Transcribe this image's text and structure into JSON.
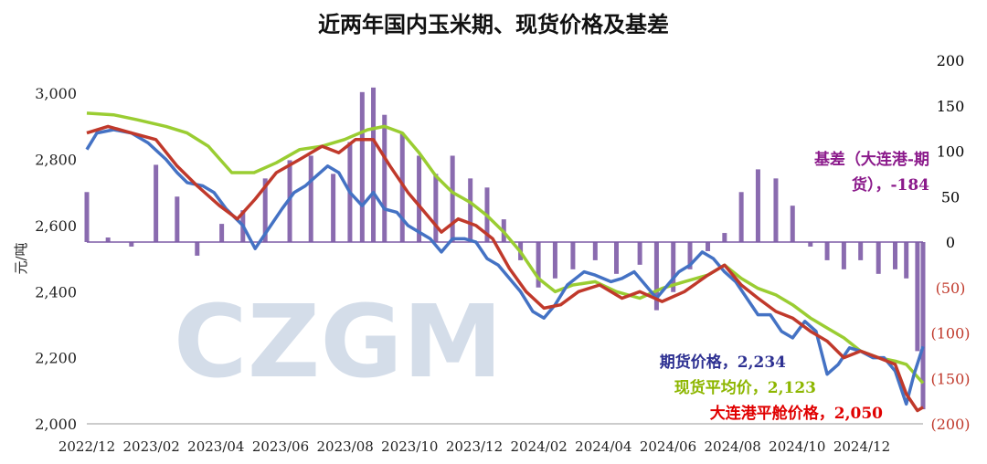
{
  "chart_data": {
    "type": "line",
    "title": "近两年国内玉米期、现货价格及基差",
    "ylabel": "元/吨",
    "watermark": "CZGM",
    "x_tick_labels": [
      "2022/12",
      "2023/02",
      "2023/04",
      "2023/06",
      "2023/08",
      "2023/10",
      "2023/12",
      "2024/02",
      "2024/04",
      "2024/06",
      "2024/08",
      "2024/10",
      "2024/12"
    ],
    "x_range": [
      "2022-12-01",
      "2024-12-20"
    ],
    "y_left": {
      "min": 2000,
      "max": 3100,
      "ticks": [
        2000,
        2200,
        2400,
        2600,
        2800,
        3000
      ],
      "tick_labels": [
        "2,000",
        "2,200",
        "2,400",
        "2,600",
        "2,800",
        "3,000"
      ]
    },
    "y_right": {
      "min": -200,
      "max": 200,
      "ticks": [
        -200,
        -150,
        -100,
        -50,
        0,
        50,
        100,
        150,
        200
      ],
      "tick_labels": [
        "(200)",
        "(150)",
        "(100)",
        "(50)",
        "0",
        "50",
        "100",
        "150",
        "200"
      ],
      "negative_color": "#C0392B",
      "positive_color": "#000000"
    },
    "colors": {
      "basis": "#7D5BA6",
      "futures": "#4472C4",
      "spot_avg": "#9ACD32",
      "port": "#C0392B",
      "label_futures": "#2E3192",
      "label_spot": "#8DB600",
      "label_port": "#E00000",
      "label_basis": "#8B1A8B"
    },
    "series": [
      {
        "key": "basis",
        "name": "基差（大连港-期货）",
        "kind": "bar",
        "axis": "right",
        "label_line1": "基差（大连港-期",
        "label_line2": "货），-184",
        "x": [
          "2022-12-01",
          "2022-12-20",
          "2023-01-10",
          "2023-02-01",
          "2023-02-20",
          "2023-03-10",
          "2023-04-01",
          "2023-04-20",
          "2023-05-10",
          "2023-06-01",
          "2023-06-20",
          "2023-07-10",
          "2023-07-25",
          "2023-08-05",
          "2023-08-15",
          "2023-08-25",
          "2023-09-10",
          "2023-09-25",
          "2023-10-10",
          "2023-10-25",
          "2023-11-10",
          "2023-11-25",
          "2023-12-10",
          "2023-12-25",
          "2024-01-10",
          "2024-01-25",
          "2024-02-10",
          "2024-03-01",
          "2024-03-20",
          "2024-04-10",
          "2024-04-25",
          "2024-05-10",
          "2024-05-25",
          "2024-06-10",
          "2024-06-25",
          "2024-07-10",
          "2024-07-25",
          "2024-08-10",
          "2024-08-25",
          "2024-09-10",
          "2024-09-25",
          "2024-10-10",
          "2024-10-25",
          "2024-11-10",
          "2024-11-25",
          "2024-12-05",
          "2024-12-15",
          "2024-12-20"
        ],
        "values": [
          55,
          5,
          -5,
          85,
          50,
          -15,
          20,
          35,
          70,
          90,
          95,
          75,
          110,
          165,
          170,
          140,
          120,
          95,
          75,
          95,
          70,
          60,
          25,
          -20,
          -50,
          -40,
          -30,
          -20,
          -35,
          -25,
          -75,
          -55,
          -30,
          -10,
          10,
          55,
          80,
          70,
          40,
          -5,
          -20,
          -30,
          -20,
          -35,
          -30,
          -40,
          -120,
          -184
        ]
      },
      {
        "key": "futures",
        "name": "期货价格",
        "kind": "line",
        "axis": "left",
        "value_label": "期货价格，2,234",
        "x": [
          "2022-12-01",
          "2022-12-10",
          "2022-12-25",
          "2023-01-10",
          "2023-01-25",
          "2023-02-10",
          "2023-02-20",
          "2023-03-01",
          "2023-03-15",
          "2023-03-25",
          "2023-04-05",
          "2023-04-20",
          "2023-05-01",
          "2023-05-15",
          "2023-05-25",
          "2023-06-05",
          "2023-06-15",
          "2023-06-25",
          "2023-07-05",
          "2023-07-15",
          "2023-07-25",
          "2023-08-05",
          "2023-08-15",
          "2023-08-25",
          "2023-09-05",
          "2023-09-15",
          "2023-09-25",
          "2023-10-05",
          "2023-10-15",
          "2023-10-25",
          "2023-11-05",
          "2023-11-15",
          "2023-11-25",
          "2023-12-05",
          "2023-12-15",
          "2023-12-25",
          "2024-01-05",
          "2024-01-15",
          "2024-01-25",
          "2024-02-05",
          "2024-02-20",
          "2024-03-01",
          "2024-03-15",
          "2024-03-25",
          "2024-04-05",
          "2024-04-15",
          "2024-04-25",
          "2024-05-05",
          "2024-05-15",
          "2024-05-25",
          "2024-06-05",
          "2024-06-15",
          "2024-06-25",
          "2024-07-05",
          "2024-07-15",
          "2024-07-25",
          "2024-08-05",
          "2024-08-15",
          "2024-08-25",
          "2024-09-05",
          "2024-09-15",
          "2024-09-25",
          "2024-10-05",
          "2024-10-15",
          "2024-10-25",
          "2024-11-05",
          "2024-11-15",
          "2024-11-25",
          "2024-12-05",
          "2024-12-12",
          "2024-12-20"
        ],
        "values": [
          2830,
          2880,
          2890,
          2880,
          2850,
          2800,
          2760,
          2730,
          2720,
          2700,
          2650,
          2600,
          2530,
          2600,
          2650,
          2700,
          2720,
          2750,
          2780,
          2760,
          2700,
          2660,
          2700,
          2650,
          2640,
          2600,
          2580,
          2560,
          2520,
          2560,
          2560,
          2550,
          2500,
          2480,
          2440,
          2400,
          2340,
          2320,
          2360,
          2420,
          2460,
          2450,
          2430,
          2440,
          2460,
          2420,
          2380,
          2420,
          2460,
          2480,
          2520,
          2500,
          2460,
          2430,
          2380,
          2330,
          2330,
          2280,
          2260,
          2310,
          2280,
          2150,
          2180,
          2230,
          2220,
          2200,
          2200,
          2160,
          2060,
          2150,
          2234
        ]
      },
      {
        "key": "spot_avg",
        "name": "现货平均价",
        "kind": "line",
        "axis": "left",
        "value_label": "现货平均价，2,123",
        "x": [
          "2022-12-01",
          "2022-12-25",
          "2023-01-15",
          "2023-02-10",
          "2023-03-01",
          "2023-03-20",
          "2023-04-10",
          "2023-04-30",
          "2023-05-20",
          "2023-06-10",
          "2023-06-30",
          "2023-07-20",
          "2023-08-10",
          "2023-08-25",
          "2023-09-10",
          "2023-09-25",
          "2023-10-10",
          "2023-10-25",
          "2023-11-10",
          "2023-11-25",
          "2023-12-10",
          "2023-12-25",
          "2024-01-10",
          "2024-01-25",
          "2024-02-10",
          "2024-03-01",
          "2024-03-20",
          "2024-04-10",
          "2024-04-30",
          "2024-05-20",
          "2024-06-10",
          "2024-06-25",
          "2024-07-10",
          "2024-07-25",
          "2024-08-10",
          "2024-08-25",
          "2024-09-10",
          "2024-09-25",
          "2024-10-10",
          "2024-10-25",
          "2024-11-10",
          "2024-11-25",
          "2024-12-05",
          "2024-12-20"
        ],
        "values": [
          2940,
          2935,
          2920,
          2900,
          2880,
          2840,
          2760,
          2760,
          2790,
          2830,
          2840,
          2860,
          2890,
          2900,
          2880,
          2820,
          2750,
          2700,
          2670,
          2630,
          2580,
          2520,
          2440,
          2400,
          2420,
          2430,
          2400,
          2380,
          2410,
          2430,
          2450,
          2480,
          2440,
          2410,
          2390,
          2360,
          2320,
          2290,
          2260,
          2220,
          2200,
          2190,
          2180,
          2123
        ]
      },
      {
        "key": "port",
        "name": "大连港平舱价格",
        "kind": "line",
        "axis": "left",
        "value_label": "大连港平舱价格，2,050",
        "x": [
          "2022-12-01",
          "2022-12-20",
          "2023-01-10",
          "2023-02-01",
          "2023-02-20",
          "2023-03-10",
          "2023-03-30",
          "2023-04-15",
          "2023-05-01",
          "2023-05-20",
          "2023-06-10",
          "2023-06-30",
          "2023-07-15",
          "2023-07-30",
          "2023-08-15",
          "2023-08-30",
          "2023-09-15",
          "2023-09-30",
          "2023-10-15",
          "2023-10-30",
          "2023-11-15",
          "2023-11-30",
          "2023-12-15",
          "2023-12-30",
          "2024-01-15",
          "2024-01-30",
          "2024-02-15",
          "2024-03-05",
          "2024-03-25",
          "2024-04-10",
          "2024-04-30",
          "2024-05-20",
          "2024-06-10",
          "2024-06-25",
          "2024-07-10",
          "2024-07-25",
          "2024-08-10",
          "2024-08-25",
          "2024-09-10",
          "2024-09-25",
          "2024-10-10",
          "2024-10-25",
          "2024-11-10",
          "2024-11-25",
          "2024-12-05",
          "2024-12-15",
          "2024-12-20"
        ],
        "values": [
          2880,
          2900,
          2880,
          2860,
          2780,
          2720,
          2660,
          2620,
          2680,
          2760,
          2800,
          2840,
          2820,
          2860,
          2860,
          2780,
          2700,
          2640,
          2580,
          2620,
          2600,
          2560,
          2470,
          2400,
          2350,
          2360,
          2400,
          2420,
          2380,
          2400,
          2370,
          2400,
          2450,
          2480,
          2420,
          2380,
          2340,
          2320,
          2280,
          2250,
          2200,
          2220,
          2200,
          2180,
          2090,
          2040,
          2050
        ]
      }
    ]
  }
}
